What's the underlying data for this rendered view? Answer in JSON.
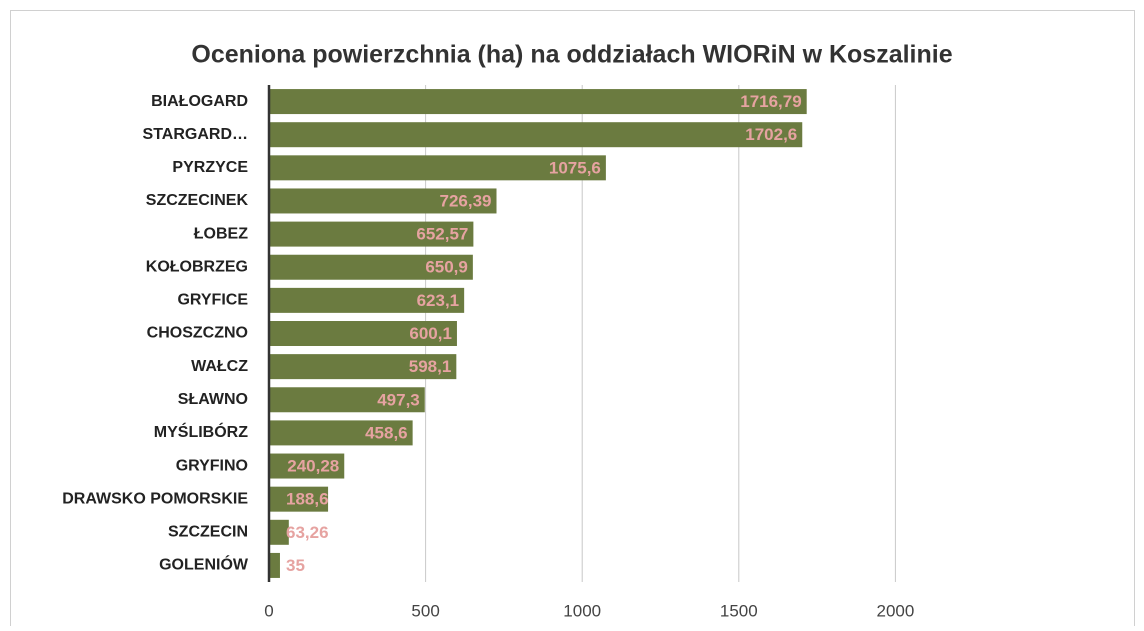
{
  "chart_data": {
    "type": "bar",
    "orientation": "horizontal",
    "title": "Oceniona powierzchnia (ha) na oddziałach WIORiN w Koszalinie",
    "categories": [
      "BIAŁOGARD",
      "STARGARD…",
      "PYRZYCE",
      "SZCZECINEK",
      "ŁOBEZ",
      "KOŁOBRZEG",
      "GRYFICE",
      "CHOSZCZNO",
      "WAŁCZ",
      "SŁAWNO",
      "MYŚLIBÓRZ",
      "GRYFINO",
      "DRAWSKO POMORSKIE",
      "SZCZECIN",
      "GOLENIÓW"
    ],
    "values": [
      1716.79,
      1702.6,
      1075.6,
      726.39,
      652.57,
      650.9,
      623.1,
      600.1,
      598.1,
      497.3,
      458.6,
      240.28,
      188.6,
      63.26,
      35
    ],
    "value_labels": [
      "1716,79",
      "1702,6",
      "1075,6",
      "726,39",
      "652,57",
      "650,9",
      "623,1",
      "600,1",
      "598,1",
      "497,3",
      "458,6",
      "240,28",
      "188,6",
      "63,26",
      "35"
    ],
    "color": "#6b7b40",
    "label_color": "#e6a3a1",
    "xlim": [
      0,
      2500
    ],
    "xticks": [
      0,
      500,
      1000,
      1500,
      2000
    ],
    "grid": true
  }
}
